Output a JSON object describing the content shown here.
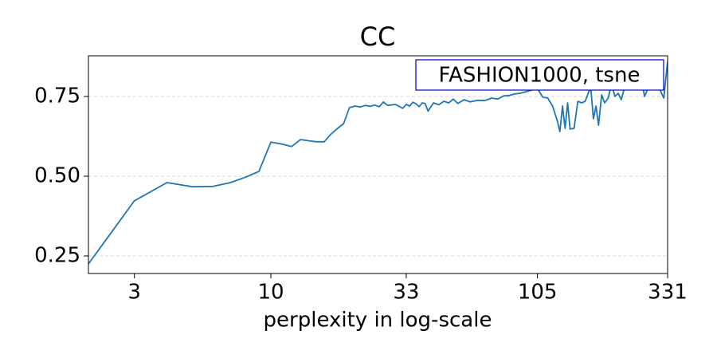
{
  "chart_data": {
    "type": "line",
    "title": "CC",
    "x_label": "perplexity in log-scale",
    "annotation": "FASHION1000, tsne",
    "x_log": true,
    "grid": true,
    "x": [
      2,
      3,
      4,
      5,
      6,
      7,
      8,
      9,
      10,
      11,
      12,
      13,
      14,
      15,
      16,
      17,
      18,
      19,
      20,
      21,
      22,
      23,
      24,
      25,
      26,
      27,
      28,
      30,
      32,
      33,
      34,
      35,
      36,
      37,
      38,
      39,
      40,
      42,
      44,
      46,
      48,
      50,
      52,
      55,
      58,
      62,
      66,
      70,
      74,
      78,
      82,
      86,
      90,
      95,
      100,
      105,
      110,
      115,
      120,
      125,
      128,
      131,
      134,
      137,
      140,
      145,
      150,
      155,
      160,
      168,
      172,
      176,
      180,
      185,
      190,
      196,
      202,
      208,
      214,
      220,
      230,
      240,
      250,
      260,
      270,
      280,
      290,
      300,
      310,
      320,
      331
    ],
    "series": [
      {
        "name": "FASHION1000, tsne",
        "color": "#1f77b4",
        "values": [
          0.225,
          0.423,
          0.48,
          0.467,
          0.468,
          0.48,
          0.497,
          0.515,
          0.607,
          0.601,
          0.593,
          0.615,
          0.611,
          0.608,
          0.608,
          0.632,
          0.65,
          0.665,
          0.715,
          0.72,
          0.717,
          0.722,
          0.719,
          0.723,
          0.718,
          0.733,
          0.722,
          0.725,
          0.713,
          0.725,
          0.72,
          0.732,
          0.727,
          0.718,
          0.73,
          0.728,
          0.704,
          0.73,
          0.724,
          0.735,
          0.73,
          0.742,
          0.728,
          0.74,
          0.733,
          0.738,
          0.737,
          0.745,
          0.742,
          0.752,
          0.753,
          0.758,
          0.76,
          0.765,
          0.77,
          0.775,
          0.748,
          0.745,
          0.72,
          0.675,
          0.64,
          0.72,
          0.65,
          0.73,
          0.648,
          0.65,
          0.735,
          0.73,
          0.735,
          0.78,
          0.68,
          0.72,
          0.66,
          0.755,
          0.73,
          0.745,
          0.79,
          0.75,
          0.76,
          0.74,
          0.8,
          0.82,
          0.79,
          0.83,
          0.75,
          0.78,
          0.8,
          0.82,
          0.77,
          0.745,
          0.86
        ]
      }
    ],
    "xlim": [
      2,
      331
    ],
    "xticks": [
      3,
      10,
      33,
      105,
      331
    ],
    "ylim": [
      0.195,
      0.8775
    ],
    "yticks": [
      0.25,
      {
        "value": 0.5,
        "label": "0.50"
      },
      0.75
    ]
  }
}
